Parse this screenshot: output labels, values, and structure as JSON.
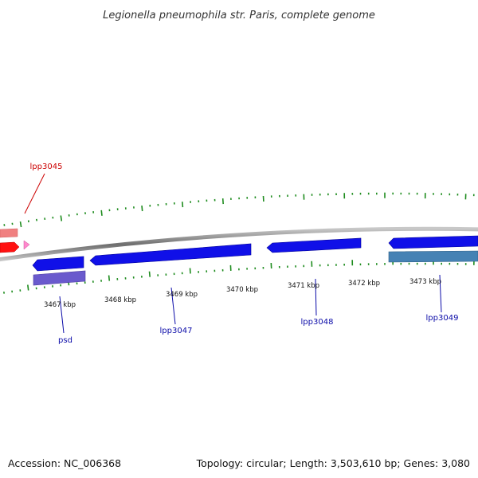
{
  "title": "Legionella pneumophila str. Paris, complete genome",
  "footer": {
    "accession": "Accession: NC_006368",
    "summary": "Topology: circular; Length: 3,503,610 bp; Genes: 3,080"
  },
  "colors": {
    "backbone": "#8a8a8a",
    "tick": "#1e8c1e",
    "gene_forward": "#1010e8",
    "gene_label_blue": "#0a0aa8",
    "gene_label_red": "#cc0000",
    "gene_red": "#ff1111",
    "gene_pink": "#f08080",
    "psd_rna": "#6a5acd",
    "lpp3049_rna": "#4682b4"
  },
  "ruler": {
    "labels": [
      "3467 kbp",
      "3468 kbp",
      "3469 kbp",
      "3470 kbp",
      "3471 kbp",
      "3472 kbp",
      "3473 kbp"
    ]
  },
  "genes": {
    "lpp3045": "lpp3045",
    "psd": "psd",
    "lpp3047": "lpp3047",
    "lpp3048": "lpp3048",
    "lpp3049": "lpp3049"
  }
}
